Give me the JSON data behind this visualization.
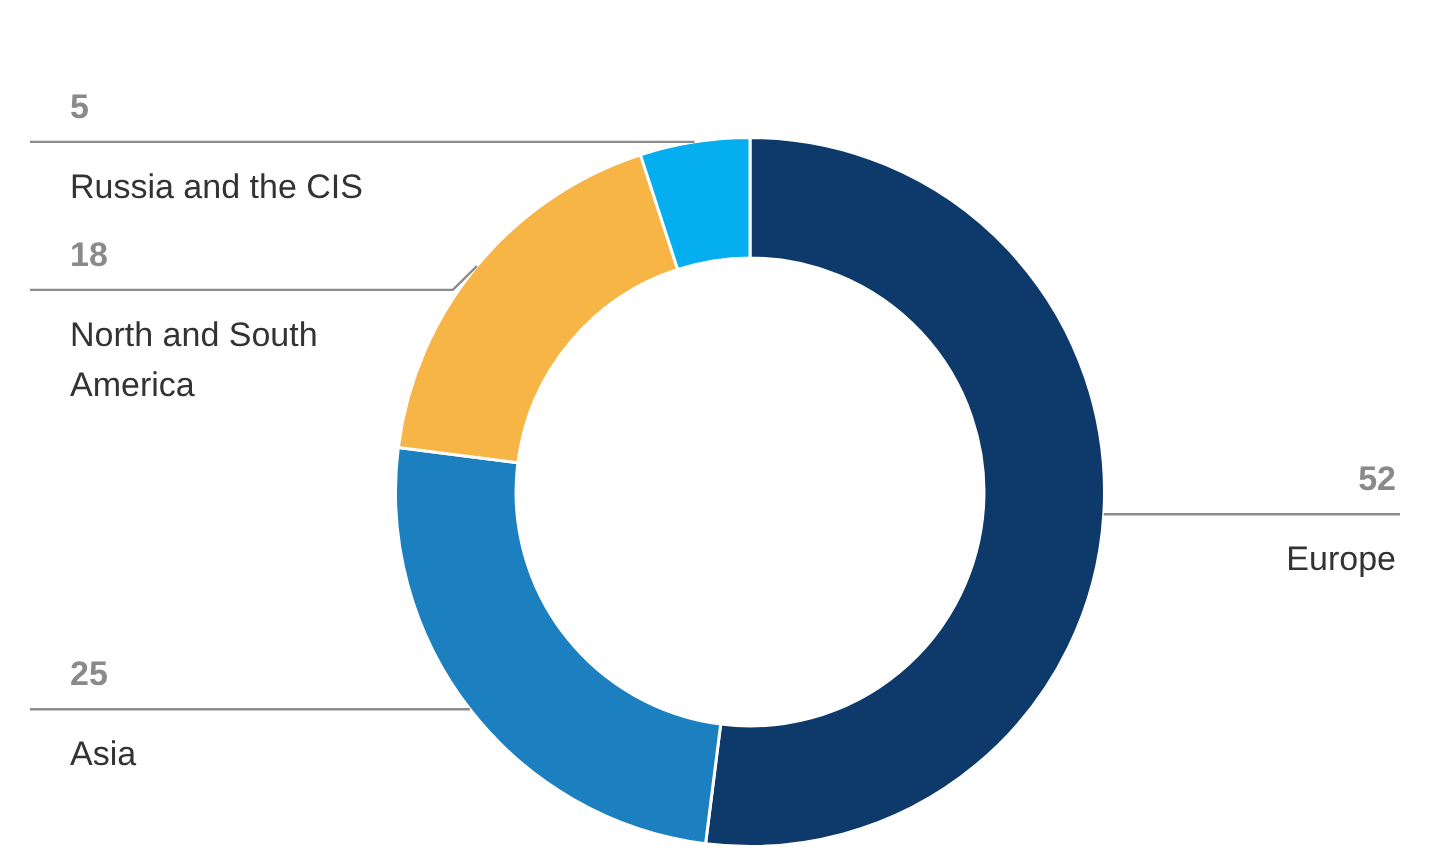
{
  "chart_data": {
    "type": "donut",
    "categories": [
      "Europe",
      "Asia",
      "North and South America",
      "Russia and the CIS"
    ],
    "values": [
      52,
      25,
      18,
      5
    ],
    "colors": [
      "#0e3a6b",
      "#1c7fc0",
      "#f7b546",
      "#05aeef"
    ],
    "data_labels": true
  }
}
